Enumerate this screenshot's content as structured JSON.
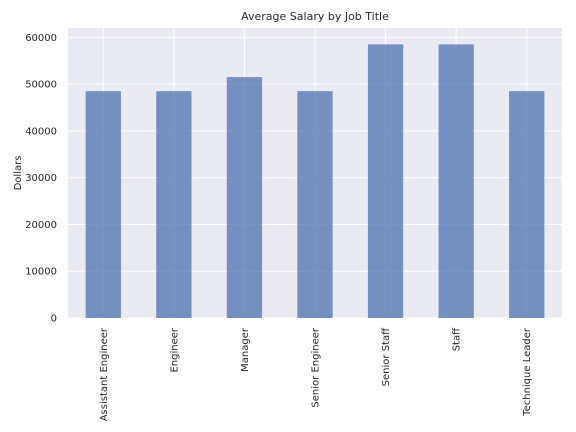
{
  "chart_data": {
    "type": "bar",
    "title": "Average Salary by Job Title",
    "xlabel": "",
    "ylabel": "Dollars",
    "categories": [
      "Assistant Engineer",
      "Engineer",
      "Manager",
      "Senior Engineer",
      "Senior Staff",
      "Staff",
      "Technique Leader"
    ],
    "values": [
      48500,
      48500,
      51500,
      48500,
      58500,
      58500,
      48500
    ],
    "ylim": [
      0,
      62000
    ],
    "yticks": [
      0,
      10000,
      20000,
      30000,
      40000,
      50000,
      60000
    ],
    "grid": true,
    "bar_color": "#4c72b0",
    "background_color": "#eaeaf2",
    "grid_color": "#ffffff"
  }
}
